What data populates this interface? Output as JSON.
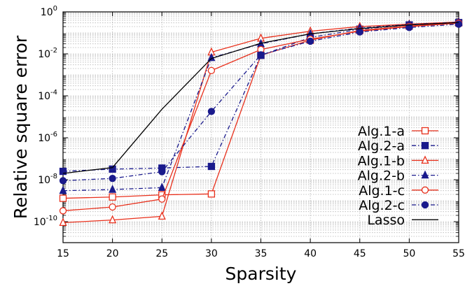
{
  "chart_data": {
    "type": "line",
    "xlabel": "Sparsity",
    "ylabel": "Relative square error",
    "x": [
      15,
      20,
      25,
      30,
      35,
      40,
      45,
      50,
      55
    ],
    "xlim": [
      15,
      55
    ],
    "ylim": [
      1e-11,
      1
    ],
    "yscale": "log",
    "xticks": [
      "15",
      "20",
      "25",
      "30",
      "35",
      "40",
      "45",
      "50",
      "55"
    ],
    "yticks": [
      {
        "base": "10",
        "exp": "0",
        "value": 1
      },
      {
        "base": "10",
        "exp": "-2",
        "value": 0.01
      },
      {
        "base": "10",
        "exp": "-4",
        "value": 0.0001
      },
      {
        "base": "10",
        "exp": "-6",
        "value": 1e-06
      },
      {
        "base": "10",
        "exp": "-8",
        "value": 1e-08
      },
      {
        "base": "10",
        "exp": "-10",
        "value": 1e-10
      }
    ],
    "grid": true,
    "legend_position": "bottom-right",
    "series": [
      {
        "name": "Alg.1-a",
        "color": "#e8301c",
        "marker": "square-open",
        "dash": "solid",
        "values": [
          1.3e-09,
          1.5e-09,
          1.9e-09,
          2.1e-09,
          0.0085,
          0.045,
          0.13,
          0.21,
          0.3
        ]
      },
      {
        "name": "Alg.2-a",
        "color": "#1a1a8c",
        "marker": "square-filled",
        "dash": "dashdot",
        "values": [
          2.5e-08,
          3.2e-08,
          3.6e-08,
          4.3e-08,
          0.0085,
          0.06,
          0.15,
          0.24,
          0.31
        ]
      },
      {
        "name": "Alg.1-b",
        "color": "#e8301c",
        "marker": "triangle-open",
        "dash": "solid",
        "values": [
          9e-11,
          1.2e-10,
          1.8e-10,
          0.012,
          0.055,
          0.12,
          0.2,
          0.26,
          0.33
        ]
      },
      {
        "name": "Alg.2-b",
        "color": "#1a1a8c",
        "marker": "triangle-filled",
        "dash": "dashdot",
        "values": [
          3e-09,
          3.4e-09,
          4.2e-09,
          0.0065,
          0.03,
          0.09,
          0.17,
          0.25,
          0.32
        ]
      },
      {
        "name": "Alg.1-c",
        "color": "#e8301c",
        "marker": "circle-open",
        "dash": "solid",
        "values": [
          3.3e-10,
          5e-10,
          1.2e-09,
          0.0016,
          0.016,
          0.05,
          0.12,
          0.2,
          0.29
        ]
      },
      {
        "name": "Alg.2-c",
        "color": "#1a1a8c",
        "marker": "circle-filled",
        "dash": "dashdot",
        "values": [
          9e-09,
          1.15e-08,
          2.4e-08,
          1.8e-05,
          0.009,
          0.04,
          0.11,
          0.18,
          0.26
        ]
      },
      {
        "name": "Lasso",
        "color": "#000000",
        "marker": "none",
        "dash": "solid",
        "values": [
          2e-08,
          3.8e-08,
          2.3e-05,
          0.006,
          0.032,
          0.09,
          0.16,
          0.24,
          0.31
        ]
      }
    ]
  }
}
